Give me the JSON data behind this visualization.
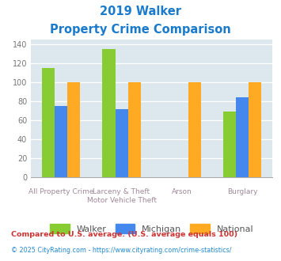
{
  "title_line1": "2019 Walker",
  "title_line2": "Property Crime Comparison",
  "cat_labels_top": [
    "",
    "Larceny & Theft",
    "Arson",
    ""
  ],
  "cat_labels_bottom": [
    "All Property Crime",
    "Motor Vehicle Theft",
    "",
    "Burglary"
  ],
  "walker": [
    115,
    135,
    0,
    69
  ],
  "michigan": [
    75,
    72,
    0,
    84
  ],
  "national": [
    100,
    100,
    100,
    100
  ],
  "walker_color": "#88cc33",
  "michigan_color": "#4488ee",
  "national_color": "#ffaa22",
  "bg_color": "#dce8ed",
  "ylim": [
    0,
    145
  ],
  "yticks": [
    0,
    20,
    40,
    60,
    80,
    100,
    120,
    140
  ],
  "legend_labels": [
    "Walker",
    "Michigan",
    "National"
  ],
  "footnote1": "Compared to U.S. average. (U.S. average equals 100)",
  "footnote2": "© 2025 CityRating.com - https://www.cityrating.com/crime-statistics/",
  "title_color": "#1a7acc",
  "label_color_top": "#a08898",
  "label_color_bottom": "#a08898",
  "footnote1_color": "#cc3333",
  "footnote2_color": "#2288cc",
  "tick_label_color": "#777777"
}
